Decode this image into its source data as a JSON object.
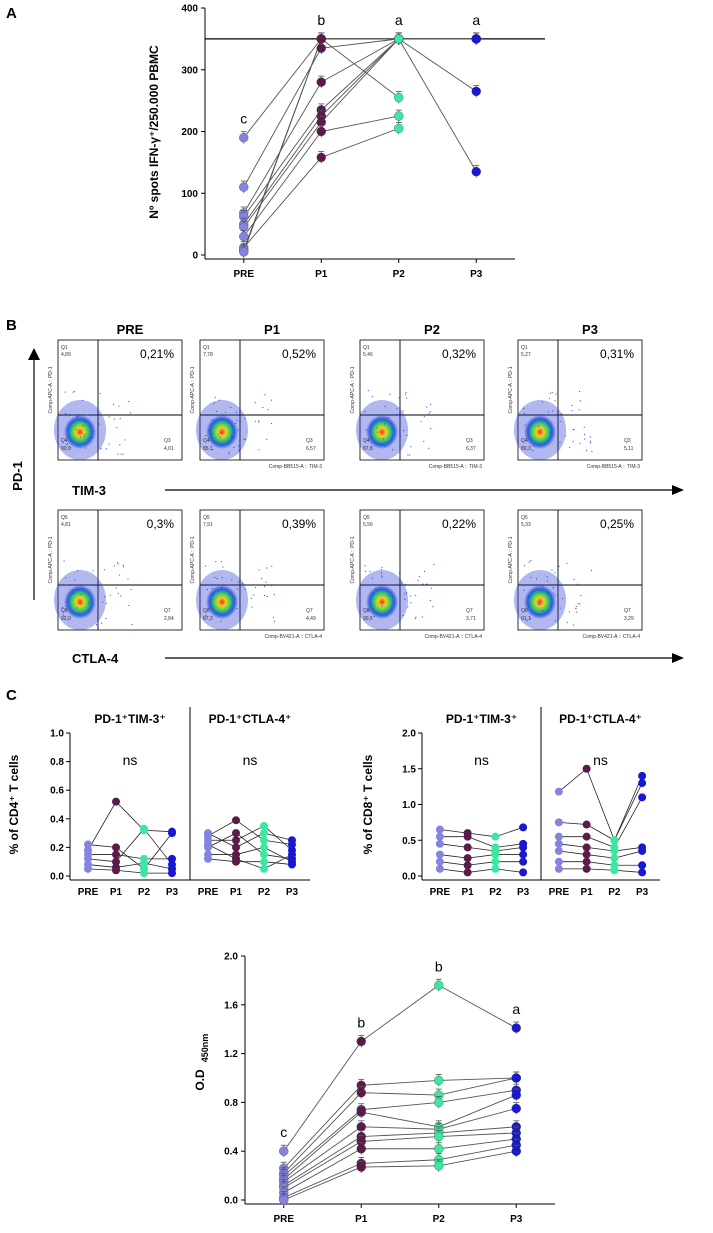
{
  "colors": {
    "PRE": "#8484e0",
    "P1": "#5a1a4a",
    "P2": "#3ae8a0",
    "P3": "#1818d0",
    "line": "#555555"
  },
  "panel_labels": [
    "A",
    "B",
    "C"
  ],
  "chart_data": [
    {
      "id": "A",
      "type": "scatter",
      "title": "",
      "ylabel": "Nº spots IFN-γ⁺/250.000 PBMC",
      "xlabel": "",
      "categories": [
        "PRE",
        "P1",
        "P2",
        "P3"
      ],
      "ylim": [
        0,
        400
      ],
      "yticks": [
        0,
        100,
        200,
        300,
        400
      ],
      "reference_line": 350,
      "significance": [
        "c",
        "b",
        "a",
        "a"
      ],
      "series": [
        {
          "name": "s1",
          "values": [
            190,
            350,
            350,
            350
          ]
        },
        {
          "name": "s2",
          "values": [
            110,
            335,
            350,
            350
          ]
        },
        {
          "name": "s3",
          "values": [
            68,
            280,
            350,
            350
          ]
        },
        {
          "name": "s4",
          "values": [
            62,
            235,
            350,
            350
          ]
        },
        {
          "name": "s5",
          "values": [
            50,
            225,
            350,
            265
          ]
        },
        {
          "name": "s6",
          "values": [
            45,
            215,
            350,
            135
          ]
        },
        {
          "name": "s7",
          "values": [
            30,
            200,
            225,
            null
          ]
        },
        {
          "name": "s8",
          "values": [
            12,
            158,
            205,
            null
          ]
        },
        {
          "name": "s9",
          "values": [
            8,
            350,
            255,
            null
          ]
        },
        {
          "name": "s10",
          "values": [
            5,
            350,
            350,
            null
          ]
        }
      ]
    },
    {
      "id": "C1",
      "type": "scatter",
      "ylabel": "% of CD4⁺ T cells",
      "ylim": [
        0,
        1.0
      ],
      "yticks": [
        "0.0",
        "0.2",
        "0.4",
        "0.6",
        "0.8",
        "1.0"
      ],
      "subpanels": [
        {
          "title": "PD-1⁺TIM-3⁺",
          "annotation": "ns",
          "categories": [
            "PRE",
            "P1",
            "P2",
            "P3"
          ],
          "series": [
            {
              "name": "s1",
              "values": [
                0.22,
                0.2,
                0.05,
                0.3
              ]
            },
            {
              "name": "s2",
              "values": [
                0.18,
                0.52,
                0.32,
                0.31
              ]
            },
            {
              "name": "s3",
              "values": [
                0.15,
                0.15,
                0.12,
                0.12
              ]
            },
            {
              "name": "s4",
              "values": [
                0.12,
                0.1,
                0.33,
                0.08
              ]
            },
            {
              "name": "s5",
              "values": [
                0.08,
                0.06,
                0.09,
                0.05
              ]
            },
            {
              "name": "s6",
              "values": [
                0.05,
                0.04,
                0.02,
                0.02
              ]
            }
          ]
        },
        {
          "title": "PD-1⁺CTLA-4⁺",
          "annotation": "ns",
          "categories": [
            "PRE",
            "P1",
            "P2",
            "P3"
          ],
          "series": [
            {
              "name": "s1",
              "values": [
                0.3,
                0.2,
                0.3,
                0.25
              ]
            },
            {
              "name": "s2",
              "values": [
                0.28,
                0.39,
                0.25,
                0.22
              ]
            },
            {
              "name": "s3",
              "values": [
                0.25,
                0.25,
                0.35,
                0.18
              ]
            },
            {
              "name": "s4",
              "values": [
                0.2,
                0.3,
                0.15,
                0.12
              ]
            },
            {
              "name": "s5",
              "values": [
                0.15,
                0.15,
                0.2,
                0.1
              ]
            },
            {
              "name": "s6",
              "values": [
                0.12,
                0.1,
                0.1,
                0.08
              ]
            },
            {
              "name": "s7",
              "values": [
                0.22,
                0.12,
                0.05,
                0.15
              ]
            }
          ]
        }
      ]
    },
    {
      "id": "C2",
      "type": "scatter",
      "ylabel": "% of CD8⁺ T cells",
      "ylim": [
        0,
        2.0
      ],
      "yticks": [
        "0.0",
        "0.5",
        "1.0",
        "1.5",
        "2.0"
      ],
      "subpanels": [
        {
          "title": "PD-1⁺TIM-3⁺",
          "annotation": "ns",
          "categories": [
            "PRE",
            "P1",
            "P2",
            "P3"
          ],
          "series": [
            {
              "name": "s1",
              "values": [
                0.65,
                0.6,
                0.55,
                0.68
              ]
            },
            {
              "name": "s2",
              "values": [
                0.55,
                0.55,
                0.4,
                0.45
              ]
            },
            {
              "name": "s3",
              "values": [
                0.45,
                0.4,
                0.35,
                0.4
              ]
            },
            {
              "name": "s4",
              "values": [
                0.3,
                0.25,
                0.3,
                0.3
              ]
            },
            {
              "name": "s5",
              "values": [
                0.2,
                0.15,
                0.2,
                0.2
              ]
            },
            {
              "name": "s6",
              "values": [
                0.1,
                0.05,
                0.1,
                0.05
              ]
            }
          ]
        },
        {
          "title": "PD-1⁺CTLA-4⁺",
          "annotation": "ns",
          "categories": [
            "PRE",
            "P1",
            "P2",
            "P3"
          ],
          "series": [
            {
              "name": "s1",
              "values": [
                1.18,
                1.5,
                0.5,
                1.4
              ]
            },
            {
              "name": "s2",
              "values": [
                0.75,
                0.72,
                0.5,
                1.3
              ]
            },
            {
              "name": "s3",
              "values": [
                0.55,
                0.55,
                0.4,
                1.1
              ]
            },
            {
              "name": "s4",
              "values": [
                0.45,
                0.4,
                0.35,
                0.4
              ]
            },
            {
              "name": "s5",
              "values": [
                0.35,
                0.3,
                0.25,
                0.35
              ]
            },
            {
              "name": "s6",
              "values": [
                0.2,
                0.2,
                0.15,
                0.15
              ]
            },
            {
              "name": "s7",
              "values": [
                0.1,
                0.1,
                0.08,
                0.05
              ]
            }
          ]
        }
      ]
    },
    {
      "id": "D",
      "type": "scatter",
      "ylabel": "O.D",
      "ylabel_sub": "450nm",
      "categories": [
        "PRE",
        "P1",
        "P2",
        "P3"
      ],
      "ylim": [
        0,
        2.0
      ],
      "yticks": [
        "0.0",
        "0.4",
        "0.8",
        "1.2",
        "1.6",
        "2.0"
      ],
      "significance": [
        "c",
        "b",
        "b",
        "a"
      ],
      "series": [
        {
          "name": "s1",
          "values": [
            0.4,
            1.3,
            1.76,
            1.41
          ]
        },
        {
          "name": "s2",
          "values": [
            0.26,
            0.94,
            0.98,
            1.0
          ]
        },
        {
          "name": "s3",
          "values": [
            0.22,
            0.88,
            0.86,
            1.0
          ]
        },
        {
          "name": "s4",
          "values": [
            0.2,
            0.74,
            0.8,
            0.9
          ]
        },
        {
          "name": "s5",
          "values": [
            0.17,
            0.72,
            0.6,
            0.86
          ]
        },
        {
          "name": "s6",
          "values": [
            0.15,
            0.6,
            0.58,
            0.75
          ]
        },
        {
          "name": "s7",
          "values": [
            0.12,
            0.52,
            0.55,
            0.6
          ]
        },
        {
          "name": "s8",
          "values": [
            0.1,
            0.48,
            0.52,
            0.55
          ]
        },
        {
          "name": "s9",
          "values": [
            0.06,
            0.42,
            0.42,
            0.5
          ]
        },
        {
          "name": "s10",
          "values": [
            0.02,
            0.3,
            0.33,
            0.45
          ]
        },
        {
          "name": "s11",
          "values": [
            0.0,
            0.27,
            0.28,
            0.4
          ]
        }
      ]
    }
  ],
  "flow": {
    "row_title": "PD-1",
    "columns": [
      "PRE",
      "P1",
      "P2",
      "P3"
    ],
    "rows": [
      {
        "marker": "TIM-3",
        "q_upper": "Q1",
        "q_lower": "Q4",
        "q_right": "Q3",
        "yaxis_label": "Comp-APC-A :: PD-1",
        "xaxis_labels": [
          "",
          "Comp-BB515-A :: TIM-3",
          "Comp-BB515-A :: TIM-3",
          "Comp-BB515-A :: TIM-3"
        ],
        "plots": [
          {
            "pct": "0,21%",
            "ul": "4,89",
            "ll": "90,9",
            "lr": "4,01"
          },
          {
            "pct": "0,52%",
            "ul": "7,78",
            "ll": "85,1",
            "lr": "6,57"
          },
          {
            "pct": "0,32%",
            "ul": "5,46",
            "ll": "87,8",
            "lr": "6,37"
          },
          {
            "pct": "0,31%",
            "ul": "5,27",
            "ll": "89,3",
            "lr": "5,11"
          }
        ]
      },
      {
        "marker": "CTLA-4",
        "q_upper": "Q5",
        "q_lower": "Q8",
        "q_right": "Q7",
        "yaxis_label": "Comp-APC-A :: PD-1",
        "xaxis_labels": [
          "",
          "Comp-BV421-A :: CTLA-4",
          "Comp-BV421-A :: CTLA-4",
          "Comp-BV421-A :: CTLA-4"
        ],
        "plots": [
          {
            "pct": "0,3%",
            "ul": "4,81",
            "ll": "92,0",
            "lr": "2,84"
          },
          {
            "pct": "0,39%",
            "ul": "7,91",
            "ll": "87,2",
            "lr": "4,49"
          },
          {
            "pct": "0,22%",
            "ul": "5,56",
            "ll": "90,5",
            "lr": "3,71"
          },
          {
            "pct": "0,25%",
            "ul": "5,33",
            "ll": "91,1",
            "lr": "3,29"
          }
        ]
      }
    ]
  }
}
